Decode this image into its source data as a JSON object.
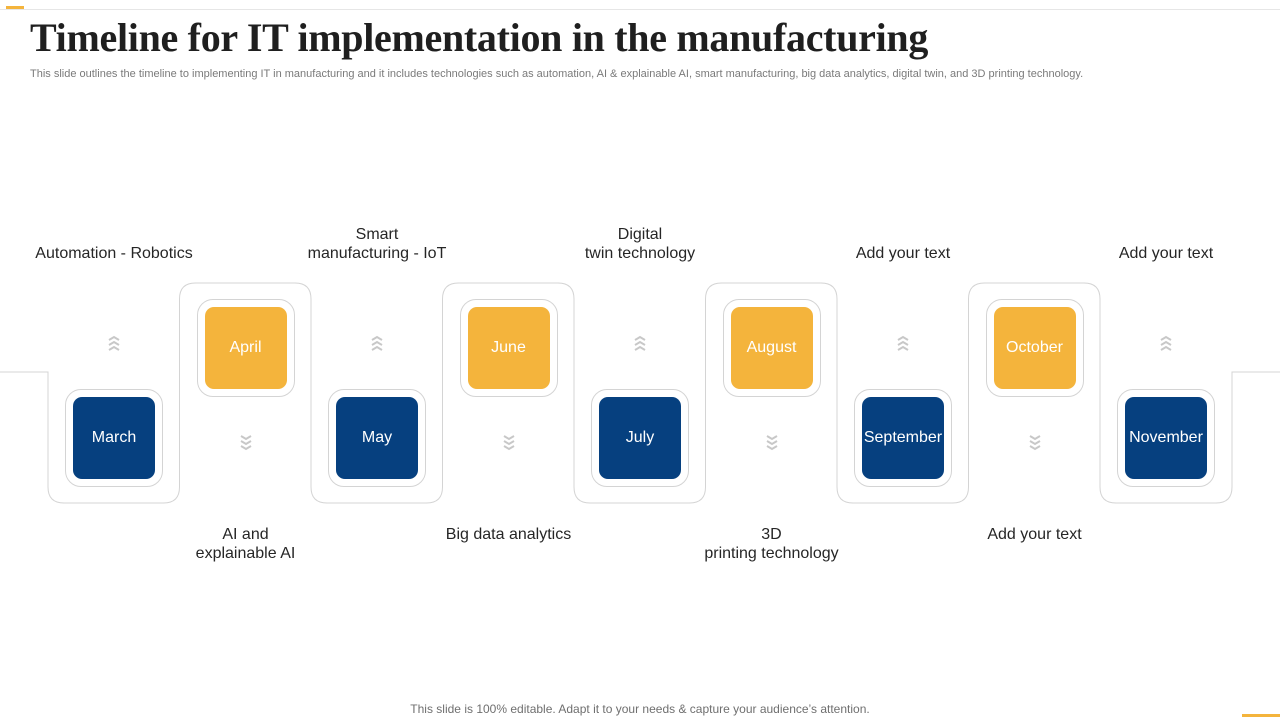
{
  "header": {
    "title": "Timeline for IT implementation in the manufacturing",
    "subtitle": "This slide outlines the timeline to implementing IT in manufacturing and it includes technologies such as automation, AI & explainable AI,  smart manufacturing, big data analytics, digital twin, and 3D printing technology."
  },
  "colors": {
    "blue": "#06407f",
    "orange": "#f4b43c",
    "outline": "#d4d4d4"
  },
  "timeline": [
    {
      "month": "March",
      "color": "blue",
      "label": [
        "Automation - Robotics"
      ]
    },
    {
      "month": "April",
      "color": "orange",
      "label": [
        "AI and",
        "explainable AI"
      ]
    },
    {
      "month": "May",
      "color": "blue",
      "label": [
        "Smart",
        "manufacturing  - IoT"
      ]
    },
    {
      "month": "June",
      "color": "orange",
      "label": [
        "Big data analytics"
      ]
    },
    {
      "month": "July",
      "color": "blue",
      "label": [
        "Digital",
        "twin technology"
      ]
    },
    {
      "month": "August",
      "color": "orange",
      "label": [
        "3D",
        "printing technology"
      ]
    },
    {
      "month": "September",
      "color": "blue",
      "label": [
        "Add your text"
      ]
    },
    {
      "month": "October",
      "color": "orange",
      "label": [
        "Add your text"
      ]
    },
    {
      "month": "November",
      "color": "blue",
      "label": [
        "Add your text"
      ]
    }
  ],
  "footer": {
    "text": "This slide is 100% editable. Adapt it to your needs & capture your audience’s attention."
  }
}
